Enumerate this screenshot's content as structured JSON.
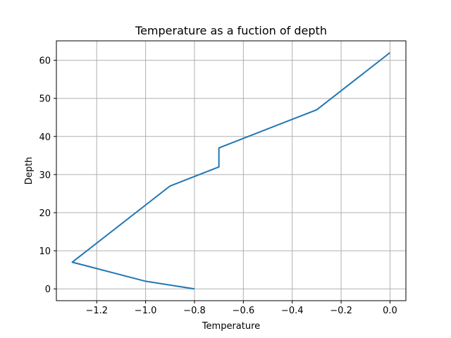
{
  "chart_data": {
    "type": "line",
    "title": "Temperature as a fuction of depth",
    "xlabel": "Temperature",
    "ylabel": "Depth",
    "xlim": [
      -1.365,
      0.065
    ],
    "ylim": [
      -3.1,
      65.1
    ],
    "xticks": [
      -1.2,
      -1.0,
      -0.8,
      -0.6,
      -0.4,
      -0.2,
      0.0
    ],
    "xtick_labels": [
      "−1.2",
      "−1.0",
      "−0.8",
      "−0.6",
      "−0.4",
      "−0.2",
      "0.0"
    ],
    "yticks": [
      0,
      10,
      20,
      30,
      40,
      50,
      60
    ],
    "ytick_labels": [
      "0",
      "10",
      "20",
      "30",
      "40",
      "50",
      "60"
    ],
    "grid": true,
    "series": [
      {
        "color": "#1f77b4",
        "x": [
          -0.8,
          -1.0,
          -1.3,
          -0.9,
          -0.7,
          -0.7,
          -0.3,
          0.0
        ],
        "y": [
          0,
          2,
          7,
          27,
          32,
          37,
          47,
          62
        ]
      }
    ]
  }
}
